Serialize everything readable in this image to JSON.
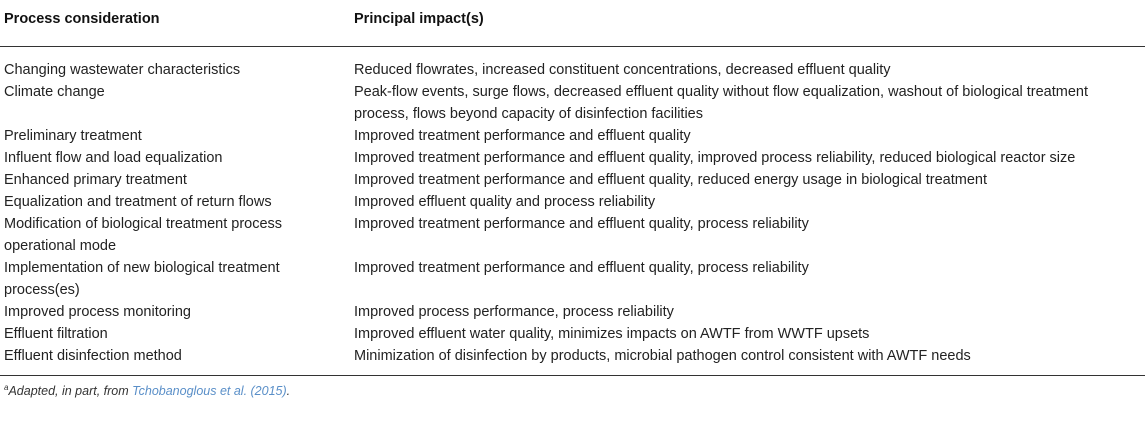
{
  "table": {
    "headers": {
      "consideration": "Process consideration",
      "impact": "Principal impact(s)"
    },
    "rows": [
      {
        "consideration": "Changing wastewater characteristics",
        "impact": "Reduced flowrates, increased constituent concentrations, decreased effluent quality"
      },
      {
        "consideration": "Climate change",
        "impact": "Peak-flow events, surge flows, decreased effluent quality without flow equalization, washout of biological treatment process, flows beyond capacity of disinfection facilities"
      },
      {
        "consideration": "Preliminary treatment",
        "impact": "Improved treatment performance and effluent quality"
      },
      {
        "consideration": "Influent flow and load equalization",
        "impact": "Improved treatment performance and effluent quality, improved process reliability, reduced biological reactor size"
      },
      {
        "consideration": "Enhanced primary treatment",
        "impact": "Improved treatment performance and effluent quality, reduced energy usage in biological treatment"
      },
      {
        "consideration": "Equalization and treatment of return flows",
        "impact": "Improved effluent quality and process reliability"
      },
      {
        "consideration": "Modification of biological treatment process operational mode",
        "impact": "Improved treatment performance and effluent quality, process reliability"
      },
      {
        "consideration": "Implementation of new biological treatment process(es)",
        "impact": "Improved treatment performance and effluent quality, process reliability"
      },
      {
        "consideration": "Improved process monitoring",
        "impact": "Improved process performance, process reliability"
      },
      {
        "consideration": "Effluent filtration",
        "impact": "Improved effluent water quality, minimizes impacts on AWTF from WWTF upsets"
      },
      {
        "consideration": "Effluent disinfection method",
        "impact": "Minimization of disinfection by products, microbial pathogen control consistent with AWTF needs"
      }
    ]
  },
  "footnote": {
    "marker": "a",
    "text": "Adapted, in part, from ",
    "reference": "Tchobanoglous et al. (2015)",
    "end": "."
  },
  "colors": {
    "text": "#222222",
    "rule": "#333333",
    "link": "#5a8fc8"
  }
}
